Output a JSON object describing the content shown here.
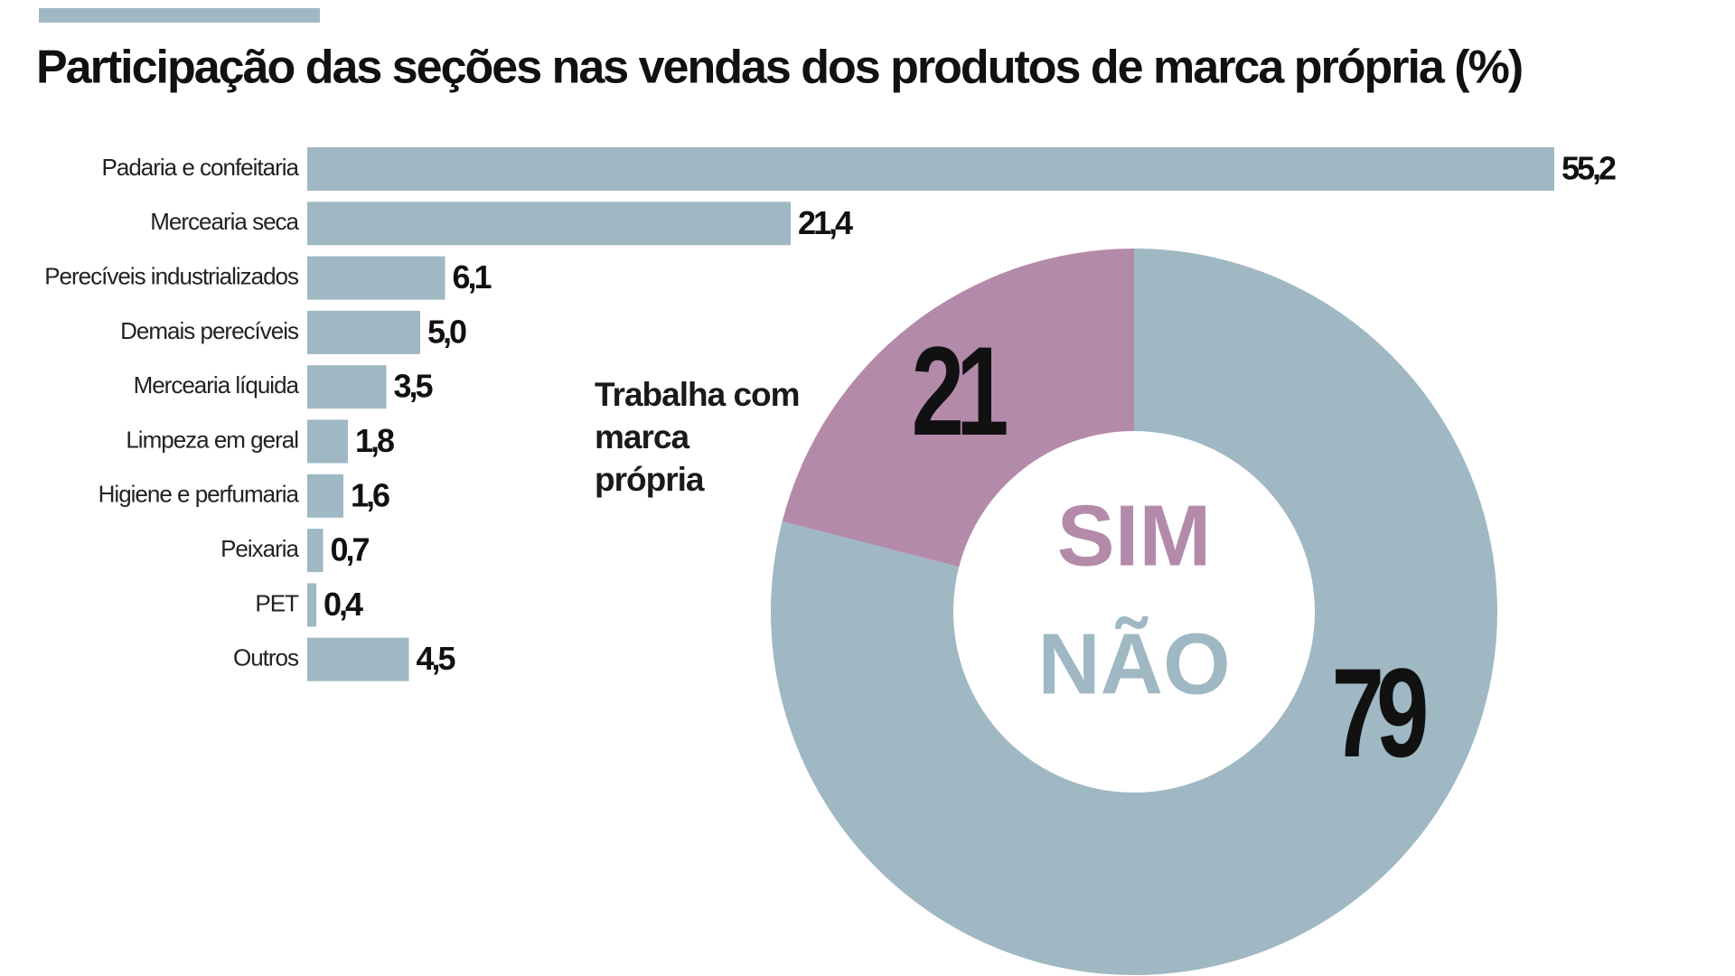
{
  "chart_data": [
    {
      "type": "hbar",
      "title": "Participação das seções nas vendas dos produtos de marca própria (%)",
      "categories": [
        "Padaria e confeitaria",
        "Mercearia seca",
        "Perecíveis industrializados",
        "Demais perecíveis",
        "Mercearia líquida",
        "Limpeza em geral",
        "Higiene e perfumaria",
        "Peixaria",
        "PET",
        "Outros"
      ],
      "values": [
        55.2,
        21.4,
        6.1,
        5.0,
        3.5,
        1.8,
        1.6,
        0.7,
        0.4,
        4.5
      ],
      "value_labels": [
        "55,2",
        "21,4",
        "6,1",
        "5,0",
        "3,5",
        "1,8",
        "1,6",
        "0,7",
        "0,4",
        "4,5"
      ],
      "color": "#9fb8c3"
    },
    {
      "type": "donut",
      "title": "Trabalha com marca própria",
      "categories": [
        "SIM",
        "NÃO"
      ],
      "values": [
        21,
        79
      ],
      "colors": [
        "#b48aab",
        "#9fb8c3"
      ]
    }
  ]
}
